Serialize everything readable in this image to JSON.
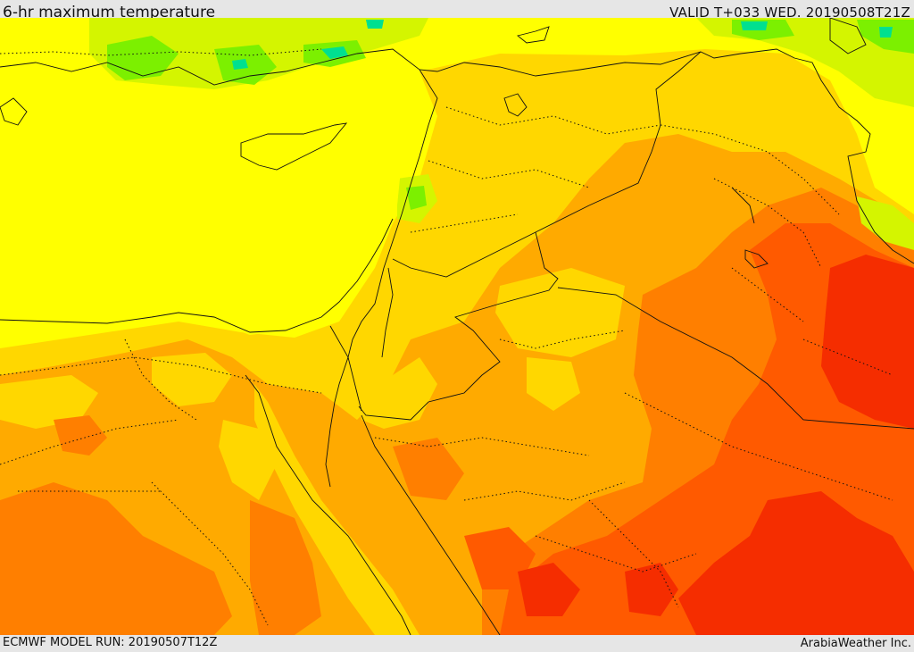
{
  "header": {
    "title": "6-hr maximum temperature",
    "valid": "VALID T+033 WED. 20190508T21Z"
  },
  "footer": {
    "model_run": "ECMWF MODEL RUN: 20190507T12Z",
    "brand": "ArabiaWeather Inc."
  },
  "map": {
    "field": "6-hr maximum temperature",
    "colors": {
      "green": "#7cf000",
      "yellow_green": "#d4f500",
      "yellow": "#ffff00",
      "gold": "#ffd700",
      "orange": "#ffaa00",
      "dark_orange": "#ff7f00",
      "red_orange": "#ff5a00",
      "red": "#f52d00",
      "cyan": "#00e090"
    }
  }
}
